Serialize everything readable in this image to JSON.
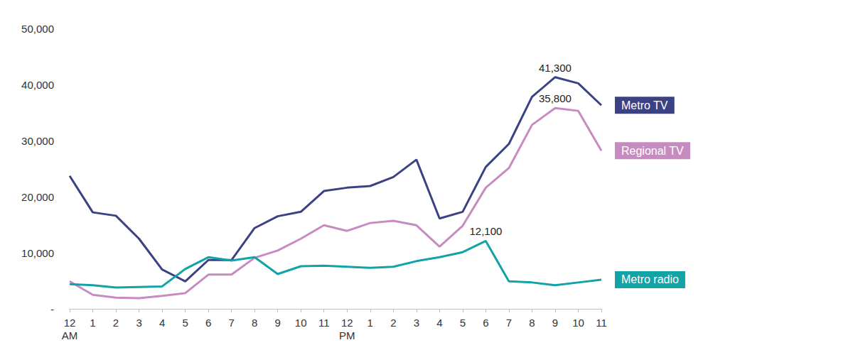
{
  "chart_data": {
    "type": "line",
    "categories": [
      "12\nAM",
      "1",
      "2",
      "3",
      "4",
      "5",
      "6",
      "7",
      "8",
      "9",
      "10",
      "11",
      "12\nPM",
      "1",
      "2",
      "3",
      "4",
      "5",
      "6",
      "7",
      "8",
      "9",
      "10",
      "11"
    ],
    "series": [
      {
        "name": "Metro TV",
        "color": "#3a4283",
        "values": [
          23700,
          17200,
          16600,
          12500,
          7000,
          4900,
          8700,
          8700,
          14400,
          16500,
          17300,
          21000,
          21600,
          21900,
          23500,
          26600,
          16100,
          17300,
          25300,
          29400,
          37800,
          41300,
          40200,
          36300
        ],
        "value_labels": [
          null,
          null,
          null,
          null,
          null,
          null,
          null,
          null,
          null,
          null,
          null,
          null,
          null,
          null,
          null,
          null,
          null,
          null,
          null,
          null,
          null,
          "41,300",
          null,
          null
        ]
      },
      {
        "name": "Regional TV",
        "color": "#c68cc0",
        "values": [
          4900,
          2500,
          2000,
          1900,
          2300,
          2800,
          6100,
          6100,
          9100,
          10400,
          12500,
          14900,
          13900,
          15300,
          15700,
          14900,
          11100,
          14800,
          21600,
          25100,
          32800,
          35800,
          35300,
          28200
        ],
        "value_labels": [
          null,
          null,
          null,
          null,
          null,
          null,
          null,
          null,
          null,
          null,
          null,
          null,
          null,
          null,
          null,
          null,
          null,
          null,
          null,
          null,
          null,
          "35,800",
          null,
          null
        ]
      },
      {
        "name": "Metro radio",
        "color": "#11a3a6",
        "values": [
          4400,
          4200,
          3800,
          3900,
          4000,
          7100,
          9200,
          8600,
          9200,
          6200,
          7600,
          7700,
          7500,
          7300,
          7500,
          8500,
          9200,
          10100,
          12100,
          4900,
          4700,
          4200,
          4700,
          5200
        ],
        "value_labels": [
          null,
          null,
          null,
          null,
          null,
          null,
          null,
          null,
          null,
          null,
          null,
          null,
          null,
          null,
          null,
          null,
          null,
          null,
          "12,100",
          null,
          null,
          null,
          null,
          null
        ]
      }
    ],
    "ylim": [
      0,
      50000
    ],
    "yticks": [
      {
        "value": 0,
        "label": "-"
      },
      {
        "value": 10000,
        "label": "10,000"
      },
      {
        "value": 20000,
        "label": "20,000"
      },
      {
        "value": 30000,
        "label": "30,000"
      },
      {
        "value": 40000,
        "label": "40,000"
      },
      {
        "value": 50000,
        "label": "50,000"
      }
    ],
    "grid": false
  }
}
